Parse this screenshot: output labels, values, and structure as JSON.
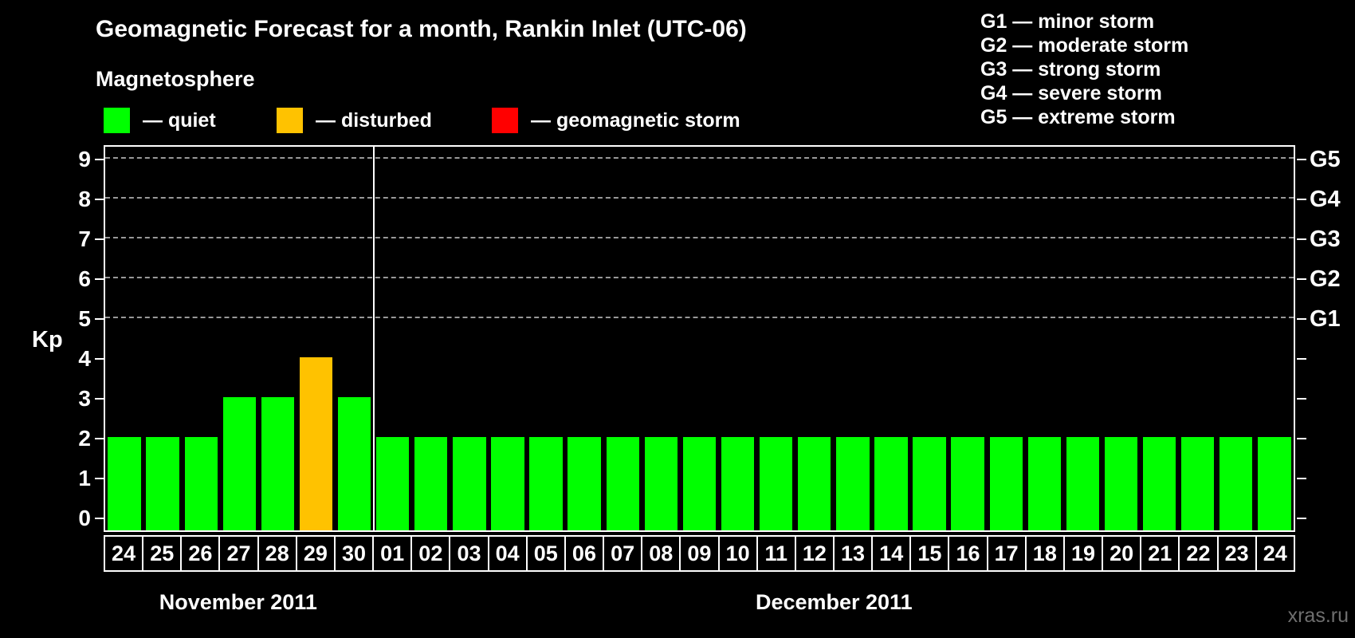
{
  "title": "Geomagnetic Forecast for a month, Rankin Inlet (UTC-06)",
  "magnetosphere_heading": "Magnetosphere",
  "kp_legend": [
    {
      "key": "quiet",
      "label": "— quiet",
      "color": "#00ff00"
    },
    {
      "key": "disturbed",
      "label": "— disturbed",
      "color": "#ffc200"
    },
    {
      "key": "storm",
      "label": "— geomagnetic storm",
      "color": "#ff0000"
    }
  ],
  "g_scale_legend": [
    {
      "label": "G1 — minor storm"
    },
    {
      "label": "G2 — moderate storm"
    },
    {
      "label": "G3 — strong storm"
    },
    {
      "label": "G4 — severe storm"
    },
    {
      "label": "G5 — extreme storm"
    }
  ],
  "watermark": "xras.ru",
  "chart_data": {
    "type": "bar",
    "title": "Geomagnetic Forecast for a month, Rankin Inlet (UTC-06)",
    "ylabel": "Kp",
    "ylim": [
      0,
      9
    ],
    "y_ticks": [
      0,
      1,
      2,
      3,
      4,
      5,
      6,
      7,
      8,
      9
    ],
    "gridlines_at": [
      5,
      6,
      7,
      8,
      9
    ],
    "grid": "dashed horizontal at G-storm levels only",
    "right_axis_labels": [
      {
        "kp": 5,
        "label": "G1"
      },
      {
        "kp": 6,
        "label": "G2"
      },
      {
        "kp": 7,
        "label": "G3"
      },
      {
        "kp": 8,
        "label": "G4"
      },
      {
        "kp": 9,
        "label": "G5"
      }
    ],
    "months": [
      {
        "label": "November 2011",
        "days": 7
      },
      {
        "label": "December 2011",
        "days": 24
      }
    ],
    "categories": [
      "24",
      "25",
      "26",
      "27",
      "28",
      "29",
      "30",
      "01",
      "02",
      "03",
      "04",
      "05",
      "06",
      "07",
      "08",
      "09",
      "10",
      "11",
      "12",
      "13",
      "14",
      "15",
      "16",
      "17",
      "18",
      "19",
      "20",
      "21",
      "22",
      "23",
      "24"
    ],
    "values": [
      2,
      2,
      2,
      3,
      3,
      4,
      3,
      2,
      2,
      2,
      2,
      2,
      2,
      2,
      2,
      2,
      2,
      2,
      2,
      2,
      2,
      2,
      2,
      2,
      2,
      2,
      2,
      2,
      2,
      2,
      2
    ],
    "statuses": [
      "quiet",
      "quiet",
      "quiet",
      "quiet",
      "quiet",
      "disturbed",
      "quiet",
      "quiet",
      "quiet",
      "quiet",
      "quiet",
      "quiet",
      "quiet",
      "quiet",
      "quiet",
      "quiet",
      "quiet",
      "quiet",
      "quiet",
      "quiet",
      "quiet",
      "quiet",
      "quiet",
      "quiet",
      "quiet",
      "quiet",
      "quiet",
      "quiet",
      "quiet",
      "quiet",
      "quiet"
    ]
  }
}
